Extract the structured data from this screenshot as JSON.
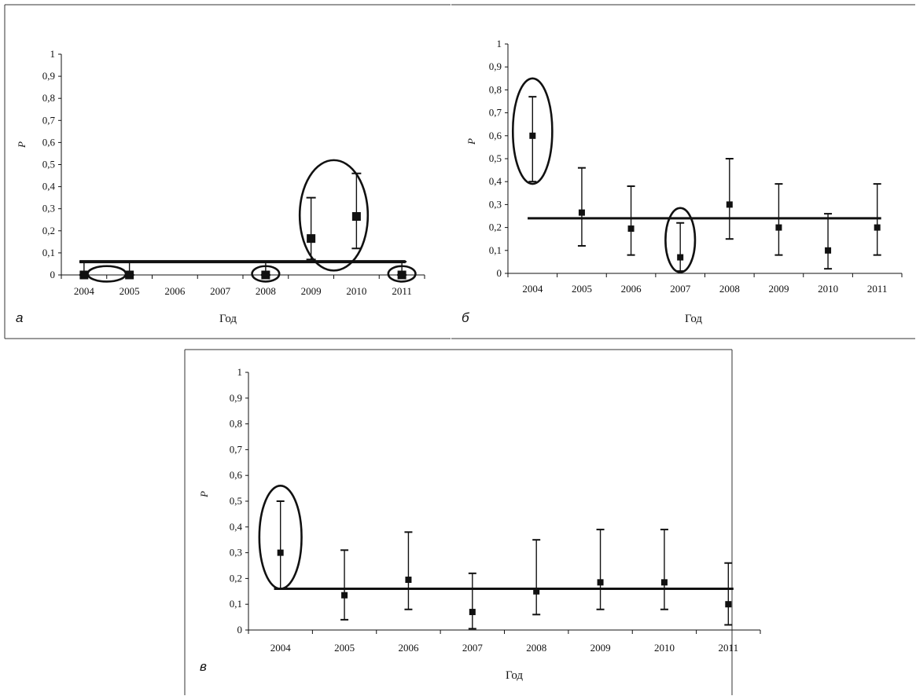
{
  "chart_data": [
    {
      "type": "scatter",
      "panel_letter": "а",
      "xlabel": "Год",
      "ylabel": "P",
      "categories": [
        "2004",
        "2005",
        "2006",
        "2007",
        "2008",
        "2009",
        "2010",
        "2011"
      ],
      "yticks": [
        "0",
        "0,1",
        "0,2",
        "0,3",
        "0,4",
        "0,5",
        "0,6",
        "0,7",
        "0,8",
        "0,9",
        "1"
      ],
      "ylim": [
        0,
        1
      ],
      "grid": false,
      "series": [
        {
          "values": [
            0,
            0,
            null,
            null,
            0,
            0.165,
            0.265,
            0
          ],
          "error_low": [
            0,
            0,
            null,
            null,
            0,
            0.07,
            0.12,
            0
          ],
          "error_high": [
            0.06,
            0.06,
            null,
            null,
            0.06,
            0.35,
            0.46,
            0.06
          ]
        }
      ],
      "reference_line": 0.06,
      "highlights": [
        {
          "cx": 2004.5,
          "cy": 0.005,
          "rx": 0.42,
          "ry": 0.035
        },
        {
          "cx": 2008,
          "cy": 0.005,
          "rx": 0.3,
          "ry": 0.035
        },
        {
          "cx": 2011,
          "cy": 0.005,
          "rx": 0.3,
          "ry": 0.035
        },
        {
          "cx": 2009.5,
          "cy": 0.27,
          "rx": 0.75,
          "ry": 0.25
        }
      ]
    },
    {
      "type": "scatter",
      "panel_letter": "б",
      "xlabel": "Год",
      "ylabel": "P",
      "categories": [
        "2004",
        "2005",
        "2006",
        "2007",
        "2008",
        "2009",
        "2010",
        "2011"
      ],
      "yticks": [
        "0",
        "0,1",
        "0,2",
        "0,3",
        "0,4",
        "0,5",
        "0,6",
        "0,7",
        "0,8",
        "0,9",
        "1"
      ],
      "ylim": [
        0,
        1
      ],
      "grid": false,
      "series": [
        {
          "values": [
            0.6,
            0.265,
            0.195,
            0.07,
            0.3,
            0.2,
            0.1,
            0.2
          ],
          "error_low": [
            0.4,
            0.12,
            0.08,
            0.01,
            0.15,
            0.08,
            0.02,
            0.08
          ],
          "error_high": [
            0.77,
            0.46,
            0.38,
            0.22,
            0.5,
            0.39,
            0.26,
            0.39
          ]
        }
      ],
      "reference_line": 0.24,
      "highlights": [
        {
          "cx": 2004,
          "cy": 0.62,
          "rx": 0.4,
          "ry": 0.23
        },
        {
          "cx": 2007,
          "cy": 0.145,
          "rx": 0.3,
          "ry": 0.14
        }
      ]
    },
    {
      "type": "scatter",
      "panel_letter": "в",
      "xlabel": "Год",
      "ylabel": "P",
      "categories": [
        "2004",
        "2005",
        "2006",
        "2007",
        "2008",
        "2009",
        "2010",
        "2011"
      ],
      "yticks": [
        "0",
        "0,1",
        "0,2",
        "0,3",
        "0,4",
        "0,5",
        "0,6",
        "0,7",
        "0,8",
        "0,9",
        "1"
      ],
      "ylim": [
        0,
        1
      ],
      "grid": false,
      "series": [
        {
          "values": [
            0.3,
            0.135,
            0.195,
            0.07,
            0.15,
            0.185,
            0.185,
            0.1
          ],
          "error_low": [
            0.16,
            0.04,
            0.08,
            0.005,
            0.06,
            0.08,
            0.08,
            0.02
          ],
          "error_high": [
            0.5,
            0.31,
            0.38,
            0.22,
            0.35,
            0.39,
            0.39,
            0.26
          ]
        }
      ],
      "reference_line": 0.16,
      "highlights": [
        {
          "cx": 2004,
          "cy": 0.36,
          "rx": 0.33,
          "ry": 0.2
        }
      ]
    }
  ],
  "colors": {
    "ink": "#111111",
    "background": "#ffffff",
    "frame": "#333333"
  }
}
